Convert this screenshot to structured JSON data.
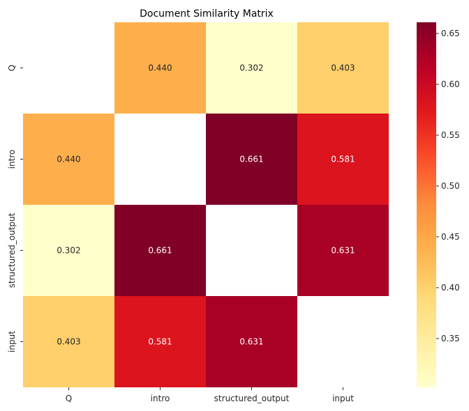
{
  "chart_data": {
    "type": "heatmap",
    "title": "Document Similarity Matrix",
    "xlabel": "",
    "ylabel": "",
    "x_categories": [
      "Q",
      "intro",
      "structured_output",
      "input"
    ],
    "y_categories": [
      "Q",
      "intro",
      "structured_output",
      "input"
    ],
    "values": [
      [
        null,
        0.44,
        0.302,
        0.403
      ],
      [
        0.44,
        null,
        0.661,
        0.581
      ],
      [
        0.302,
        0.661,
        null,
        0.631
      ],
      [
        0.403,
        0.581,
        0.631,
        null
      ]
    ],
    "value_labels": [
      [
        null,
        "0.440",
        "0.302",
        "0.403"
      ],
      [
        "0.440",
        null,
        "0.661",
        "0.581"
      ],
      [
        "0.302",
        "0.661",
        null,
        "0.631"
      ],
      [
        "0.403",
        "0.581",
        "0.631",
        null
      ]
    ],
    "diagonal_masked": true,
    "colormap": "YlOrRd",
    "colorbar_range": [
      0.302,
      0.661
    ],
    "colorbar_ticks": [
      0.35,
      0.4,
      0.45,
      0.5,
      0.55,
      0.6,
      0.65
    ],
    "colorbar_tick_labels": [
      "0.35",
      "0.40",
      "0.45",
      "0.50",
      "0.55",
      "0.60",
      "0.65"
    ],
    "grid": false,
    "legend": "colorbar-right"
  }
}
